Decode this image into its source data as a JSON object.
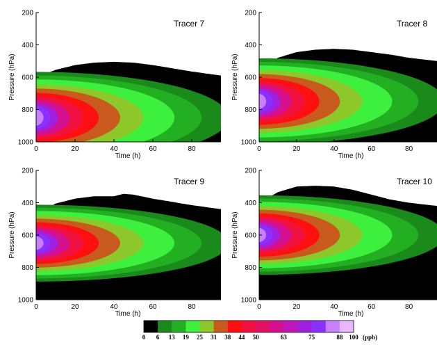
{
  "chart_data": [
    {
      "type": "heatmap",
      "title": "Tracer 7",
      "xlabel": "Time (h)",
      "ylabel": "Pressure (hPa)",
      "xlim": [
        0,
        95
      ],
      "ylim": [
        1000,
        200
      ],
      "xticks": [
        0,
        20,
        40,
        60,
        80
      ],
      "yticks": [
        200,
        400,
        600,
        800,
        1000
      ],
      "source_center_p": 850,
      "top_boundary_p": [
        [
          0,
          600
        ],
        [
          10,
          555
        ],
        [
          20,
          525
        ],
        [
          30,
          510
        ],
        [
          40,
          505
        ],
        [
          50,
          510
        ],
        [
          60,
          525
        ],
        [
          70,
          545
        ],
        [
          80,
          565
        ],
        [
          95,
          590
        ]
      ],
      "bottom_boundary_p": [
        [
          0,
          1000
        ],
        [
          95,
          1000
        ]
      ],
      "max_ppb": 100
    },
    {
      "type": "heatmap",
      "title": "Tracer 8",
      "xlabel": "Time (h)",
      "ylabel": "Pressure (hPa)",
      "xlim": [
        0,
        95
      ],
      "ylim": [
        1000,
        200
      ],
      "xticks": [
        0,
        20,
        40,
        60,
        80
      ],
      "yticks": [
        200,
        400,
        600,
        800,
        1000
      ],
      "source_center_p": 750,
      "top_boundary_p": [
        [
          0,
          560
        ],
        [
          10,
          480
        ],
        [
          20,
          445
        ],
        [
          30,
          430
        ],
        [
          40,
          425
        ],
        [
          50,
          430
        ],
        [
          60,
          445
        ],
        [
          70,
          460
        ],
        [
          80,
          480
        ],
        [
          95,
          500
        ]
      ],
      "bottom_boundary_p": [
        [
          0,
          1000
        ],
        [
          95,
          1000
        ]
      ],
      "max_ppb": 100
    },
    {
      "type": "heatmap",
      "title": "Tracer 9",
      "xlabel": "Time (h)",
      "ylabel": "Pressure (hPa)",
      "xlim": [
        0,
        95
      ],
      "ylim": [
        1000,
        200
      ],
      "xticks": [
        0,
        20,
        40,
        60,
        80
      ],
      "yticks": [
        200,
        400,
        600,
        800,
        1000
      ],
      "source_center_p": 650,
      "top_boundary_p": [
        [
          0,
          470
        ],
        [
          10,
          405
        ],
        [
          20,
          375
        ],
        [
          30,
          360
        ],
        [
          40,
          360
        ],
        [
          45,
          345
        ],
        [
          50,
          350
        ],
        [
          60,
          375
        ],
        [
          70,
          395
        ],
        [
          80,
          415
        ],
        [
          95,
          440
        ]
      ],
      "bottom_boundary_p": [
        [
          0,
          1000
        ],
        [
          95,
          1000
        ]
      ],
      "max_ppb": 100
    },
    {
      "type": "heatmap",
      "title": "Tracer 10",
      "xlabel": "Time (h)",
      "ylabel": "Pressure (hPa)",
      "xlim": [
        0,
        95
      ],
      "ylim": [
        1000,
        200
      ],
      "xticks": [
        0,
        20,
        40,
        60,
        80
      ],
      "yticks": [
        200,
        400,
        600,
        800,
        1000
      ],
      "source_center_p": 600,
      "top_boundary_p": [
        [
          0,
          400
        ],
        [
          10,
          335
        ],
        [
          20,
          300
        ],
        [
          30,
          295
        ],
        [
          40,
          300
        ],
        [
          50,
          320
        ],
        [
          60,
          350
        ],
        [
          70,
          380
        ],
        [
          80,
          400
        ],
        [
          95,
          420
        ]
      ],
      "bottom_boundary_p": [
        [
          0,
          1000
        ],
        [
          95,
          1000
        ]
      ],
      "max_ppb": 100
    }
  ],
  "colorbar": {
    "unit": "(ppb)",
    "tick_labels": [
      "0",
      "6",
      "13",
      "19",
      "25",
      "31",
      "38",
      "44",
      "50",
      "63",
      "75",
      "88",
      "100"
    ],
    "colors": [
      "#000000",
      "#1a8a1a",
      "#22b022",
      "#3ef03e",
      "#8cc82a",
      "#c85a1e",
      "#ff1010",
      "#f01040",
      "#e01064",
      "#d41090",
      "#c018b8",
      "#a020e0",
      "#8a30ff",
      "#c880ff",
      "#e8b8ff"
    ]
  }
}
